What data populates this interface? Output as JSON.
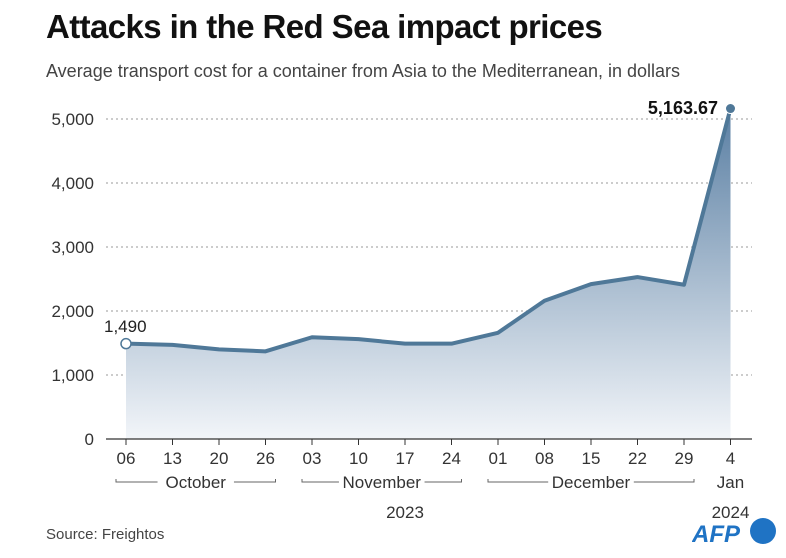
{
  "chart_data": {
    "type": "area",
    "title": "Attacks in the Red Sea impact prices",
    "subtitle": "Average transport cost for a container from Asia to the Mediterranean, in dollars",
    "x": [
      "06",
      "13",
      "20",
      "26",
      "03",
      "10",
      "17",
      "24",
      "01",
      "08",
      "15",
      "22",
      "29",
      "4"
    ],
    "values": [
      1490,
      1470,
      1400,
      1370,
      1590,
      1560,
      1490,
      1490,
      1660,
      2160,
      2420,
      2530,
      2410,
      5163.67
    ],
    "y_ticks": [
      "0",
      "1,000",
      "2,000",
      "3,000",
      "4,000",
      "5,000"
    ],
    "ylim": [
      0,
      5300
    ],
    "grid": true,
    "month_labels": [
      {
        "label": "October",
        "from": 0,
        "to": 3
      },
      {
        "label": "November",
        "from": 4,
        "to": 7
      },
      {
        "label": "December",
        "from": 8,
        "to": 12
      },
      {
        "label": "Jan",
        "from": 13,
        "to": 13
      }
    ],
    "year_labels": [
      {
        "label": "2023",
        "from": 0,
        "to": 12
      },
      {
        "label": "2024",
        "from": 13,
        "to": 13
      }
    ],
    "annotations": [
      {
        "text": "1,490",
        "index": 0
      },
      {
        "text": "5,163.67",
        "index": 13
      }
    ],
    "colors": {
      "line": "#4f7898",
      "fill_top": "#5a7fa3",
      "fill_bottom": "#f2f5f9",
      "grid": "#9a9a9a"
    }
  },
  "source": "Source: Freightos",
  "logo": {
    "text": "AFP",
    "color": "#1f73c4"
  }
}
